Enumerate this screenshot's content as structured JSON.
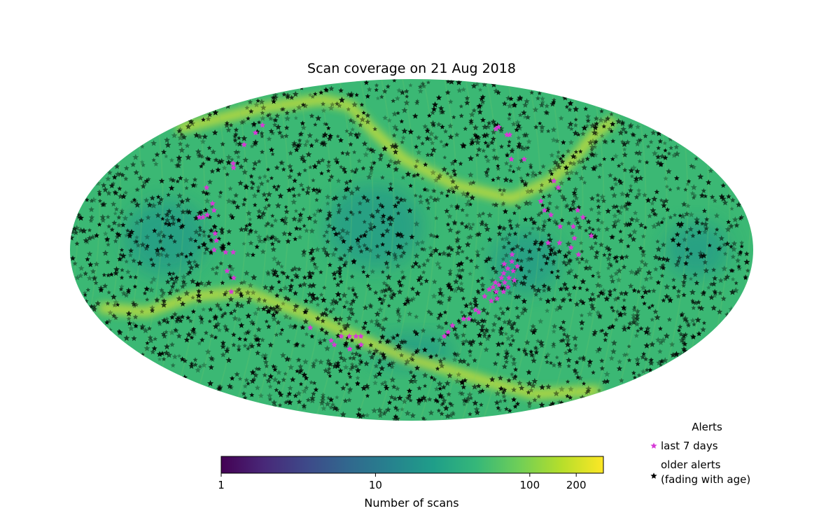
{
  "chart_data": {
    "type": "heatmap",
    "title": "Scan coverage on 21 Aug 2018",
    "projection": "mollweide",
    "colormap": "viridis",
    "colorbar": {
      "label": "Number of scans",
      "scale": "log",
      "range": [
        1,
        300
      ],
      "ticks": [
        {
          "value": 1,
          "label": "1"
        },
        {
          "value": 10,
          "label": "10"
        },
        {
          "value": 100,
          "label": "100"
        },
        {
          "value": 200,
          "label": "200"
        }
      ],
      "gradient_colors": [
        "#440154",
        "#482878",
        "#3e4989",
        "#31688e",
        "#26828e",
        "#1f9e89",
        "#35b779",
        "#6ece58",
        "#b5de2b",
        "#fde725"
      ]
    },
    "coverage": {
      "background_color": "#3bb874",
      "low_region_color": "#219a88",
      "high_band_color": "#c6dd3a"
    },
    "legend": {
      "title": "Alerts",
      "placement": "lower-right",
      "entries": [
        {
          "label": "last 7 days",
          "marker": "star",
          "color": "#d63ad6"
        },
        {
          "label": "older alerts\n(fading with age)",
          "marker": "star",
          "color": "#000000"
        }
      ]
    },
    "series": [
      {
        "name": "last 7 days",
        "color": "#d63ad6",
        "points_desc": "recent alert sky positions (lon, lat in degrees)",
        "points": [
          [
            -115,
            57
          ],
          [
            -113,
            53
          ],
          [
            -112,
            47
          ],
          [
            -109,
            38
          ],
          [
            -107,
            36
          ],
          [
            -116,
            27
          ],
          [
            -109,
            20
          ],
          [
            -114,
            14
          ],
          [
            -112,
            14
          ],
          [
            -110,
            15
          ],
          [
            -107,
            17
          ],
          [
            -104,
            7
          ],
          [
            -103,
            4
          ],
          [
            -104,
            0
          ],
          [
            -98,
            -1
          ],
          [
            -94,
            -1
          ],
          [
            -98,
            -9
          ],
          [
            -95,
            -12
          ],
          [
            -98,
            -18
          ],
          [
            -60,
            -34
          ],
          [
            -50,
            -40
          ],
          [
            -49,
            -42
          ],
          [
            -43,
            -38
          ],
          [
            -38,
            -38
          ],
          [
            -40,
            -44
          ],
          [
            -34,
            -38
          ],
          [
            -31,
            -38
          ],
          [
            -32,
            -42
          ],
          [
            20,
            -38
          ],
          [
            22,
            -36
          ],
          [
            24,
            -33
          ],
          [
            30,
            -30
          ],
          [
            33,
            -30
          ],
          [
            36,
            -26
          ],
          [
            38,
            -27
          ],
          [
            40,
            -20
          ],
          [
            42,
            -17
          ],
          [
            44,
            -16
          ],
          [
            45,
            -14
          ],
          [
            46,
            -18
          ],
          [
            47,
            -15
          ],
          [
            48,
            -12
          ],
          [
            49,
            -10
          ],
          [
            50,
            -14
          ],
          [
            51,
            -8
          ],
          [
            52,
            -12
          ],
          [
            53,
            -5
          ],
          [
            54,
            -9
          ],
          [
            47,
            -21
          ],
          [
            50,
            -18
          ],
          [
            52,
            -16
          ],
          [
            55,
            -13
          ],
          [
            44,
            -22
          ],
          [
            49,
            -6
          ],
          [
            53,
            -2
          ],
          [
            56,
            -7
          ],
          [
            63,
            55
          ],
          [
            66,
            56
          ],
          [
            68,
            52
          ],
          [
            70,
            52
          ],
          [
            62,
            40
          ],
          [
            70,
            40
          ],
          [
            71,
            21
          ],
          [
            72,
            17
          ],
          [
            75,
            15
          ],
          [
            79,
            10
          ],
          [
            82,
            30
          ],
          [
            83,
            27
          ],
          [
            86,
            10
          ],
          [
            90,
            17
          ],
          [
            92,
            14
          ],
          [
            95,
            6
          ],
          [
            72,
            3
          ],
          [
            78,
            3
          ],
          [
            86,
            5
          ],
          [
            84,
            1
          ],
          [
            88,
            -2
          ]
        ]
      },
      {
        "name": "older alerts\n(fading with age)",
        "color": "#000000",
        "points_desc": "thousands of older alerts distributed over the full sky, denser along the high-coverage bands",
        "count_approx": 3000,
        "seed": 42
      }
    ]
  }
}
